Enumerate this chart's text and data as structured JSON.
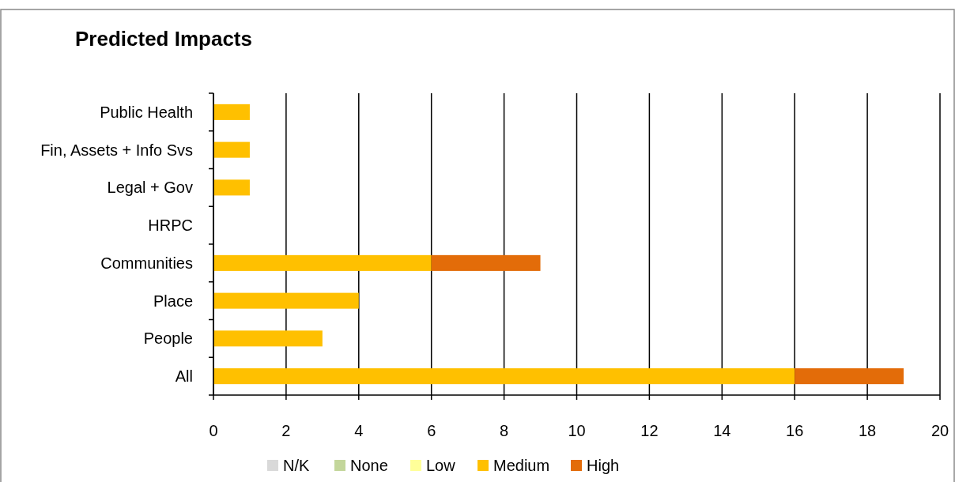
{
  "chart_data": {
    "type": "bar",
    "orientation": "horizontal",
    "stacked": true,
    "title": "Predicted Impacts",
    "categories": [
      "Public Health",
      "Fin, Assets + Info Svs",
      "Legal + Gov",
      "HRPC",
      "Communities",
      "Place",
      "People",
      "All"
    ],
    "series": [
      {
        "name": "N/K",
        "color": "#d9d9d9",
        "values": [
          0,
          0,
          0,
          0,
          0,
          0,
          0,
          0
        ]
      },
      {
        "name": "None",
        "color": "#c3d69b",
        "values": [
          0,
          0,
          0,
          0,
          0,
          0,
          0,
          0
        ]
      },
      {
        "name": "Low",
        "color": "#ffff99",
        "values": [
          0,
          0,
          0,
          0,
          0,
          0,
          0,
          0
        ]
      },
      {
        "name": "Medium",
        "color": "#ffc000",
        "values": [
          1,
          1,
          1,
          0,
          6,
          4,
          3,
          16
        ]
      },
      {
        "name": "High",
        "color": "#e36c09",
        "values": [
          0,
          0,
          0,
          0,
          3,
          0,
          0,
          3
        ]
      }
    ],
    "xlim": [
      0,
      20
    ],
    "xticks": [
      0,
      2,
      4,
      6,
      8,
      10,
      12,
      14,
      16,
      18,
      20
    ],
    "grid": "x",
    "legend": "bottom"
  }
}
